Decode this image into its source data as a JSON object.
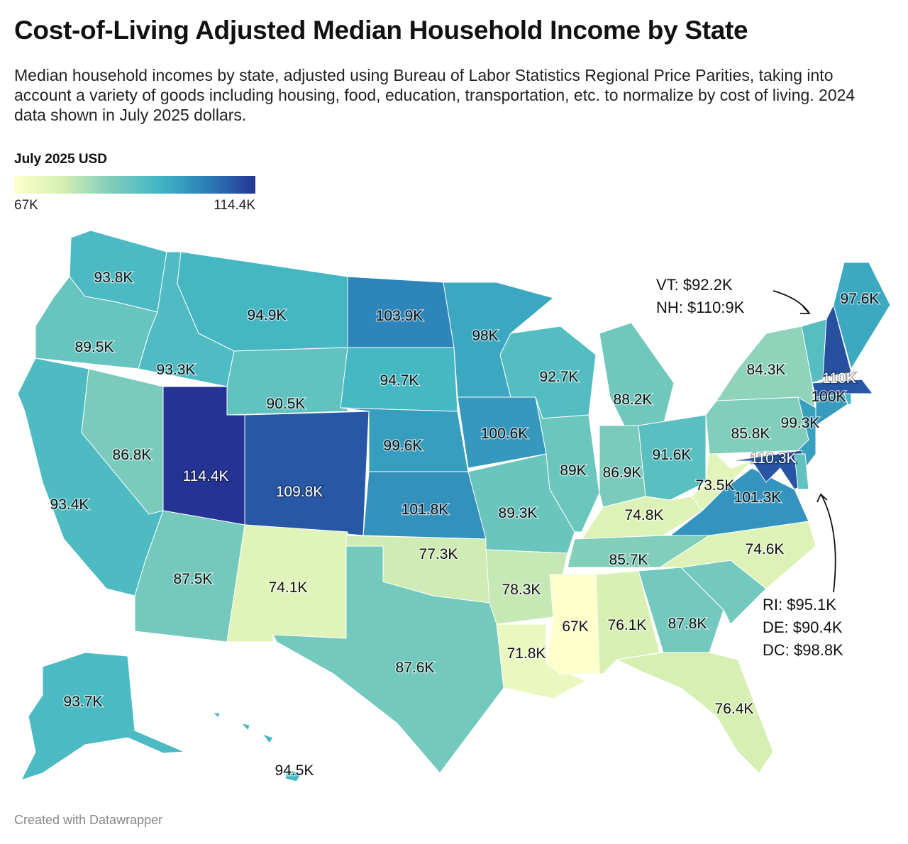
{
  "title": "Cost-of-Living Adjusted Median Household Income by State",
  "subtitle": "Median household incomes by state, adjusted using Bureau of Labor Statistics Regional Price Parities, taking into account a variety of goods including housing, food, education, transportation, etc. to normalize by cost of living. 2024 data shown in July 2025 dollars.",
  "legend": {
    "title": "July 2025 USD",
    "min_label": "67K",
    "max_label": "114.4K",
    "min": 67,
    "max": 114.4,
    "colors": [
      "#ffffcc",
      "#d6efb3",
      "#7fcdbb",
      "#41b6c4",
      "#2c7fb8",
      "#253494"
    ]
  },
  "states": [
    {
      "abbr": "WA",
      "value": 93.8,
      "label": "93.8K"
    },
    {
      "abbr": "OR",
      "value": 89.5,
      "label": "89.5K"
    },
    {
      "abbr": "CA",
      "value": 93.4,
      "label": "93.4K"
    },
    {
      "abbr": "NV",
      "value": 86.8,
      "label": "86.8K"
    },
    {
      "abbr": "ID",
      "value": 93.3,
      "label": "93.3K"
    },
    {
      "abbr": "MT",
      "value": 94.9,
      "label": "94.9K"
    },
    {
      "abbr": "WY",
      "value": 90.5,
      "label": "90.5K"
    },
    {
      "abbr": "UT",
      "value": 114.4,
      "label": "114.4K"
    },
    {
      "abbr": "CO",
      "value": 109.8,
      "label": "109.8K"
    },
    {
      "abbr": "AZ",
      "value": 87.5,
      "label": "87.5K"
    },
    {
      "abbr": "NM",
      "value": 74.1,
      "label": "74.1K"
    },
    {
      "abbr": "ND",
      "value": 103.9,
      "label": "103.9K"
    },
    {
      "abbr": "SD",
      "value": 94.7,
      "label": "94.7K"
    },
    {
      "abbr": "NE",
      "value": 99.6,
      "label": "99.6K"
    },
    {
      "abbr": "KS",
      "value": 101.8,
      "label": "101.8K"
    },
    {
      "abbr": "OK",
      "value": 77.3,
      "label": "77.3K"
    },
    {
      "abbr": "TX",
      "value": 87.6,
      "label": "87.6K"
    },
    {
      "abbr": "MN",
      "value": 98,
      "label": "98K"
    },
    {
      "abbr": "IA",
      "value": 100.6,
      "label": "100.6K"
    },
    {
      "abbr": "MO",
      "value": 89.3,
      "label": "89.3K"
    },
    {
      "abbr": "AR",
      "value": 78.3,
      "label": "78.3K"
    },
    {
      "abbr": "LA",
      "value": 71.8,
      "label": "71.8K"
    },
    {
      "abbr": "WI",
      "value": 92.7,
      "label": "92.7K"
    },
    {
      "abbr": "IL",
      "value": 89,
      "label": "89K"
    },
    {
      "abbr": "MI",
      "value": 88.2,
      "label": "88.2K"
    },
    {
      "abbr": "IN",
      "value": 86.9,
      "label": "86.9K"
    },
    {
      "abbr": "OH",
      "value": 91.6,
      "label": "91.6K"
    },
    {
      "abbr": "KY",
      "value": 74.8,
      "label": "74.8K"
    },
    {
      "abbr": "TN",
      "value": 85.7,
      "label": "85.7K"
    },
    {
      "abbr": "MS",
      "value": 67,
      "label": "67K"
    },
    {
      "abbr": "AL",
      "value": 76.1,
      "label": "76.1K"
    },
    {
      "abbr": "GA",
      "value": 87.8,
      "label": "87.8K"
    },
    {
      "abbr": "FL",
      "value": 76.4,
      "label": "76.4K"
    },
    {
      "abbr": "SC",
      "value": 87.8,
      "label": ""
    },
    {
      "abbr": "NC",
      "value": 74.6,
      "label": "74.6K"
    },
    {
      "abbr": "VA",
      "value": 101.3,
      "label": "101.3K"
    },
    {
      "abbr": "WV",
      "value": 73.5,
      "label": "73.5K"
    },
    {
      "abbr": "PA",
      "value": 85.8,
      "label": "85.8K"
    },
    {
      "abbr": "NY",
      "value": 84.3,
      "label": "84.3K"
    },
    {
      "abbr": "NJ",
      "value": 99.3,
      "label": "99.3K"
    },
    {
      "abbr": "MD",
      "value": 110.3,
      "label": "110.3K"
    },
    {
      "abbr": "DE",
      "value": 90.4,
      "label": ""
    },
    {
      "abbr": "CT",
      "value": 100,
      "label": "100K"
    },
    {
      "abbr": "RI",
      "value": 95.1,
      "label": ""
    },
    {
      "abbr": "MA",
      "value": 110,
      "label": "110K"
    },
    {
      "abbr": "VT",
      "value": 92.2,
      "label": ""
    },
    {
      "abbr": "NH",
      "value": 110.9,
      "label": ""
    },
    {
      "abbr": "ME",
      "value": 97.6,
      "label": "97.6K"
    },
    {
      "abbr": "AK",
      "value": 93.7,
      "label": "93.7K"
    },
    {
      "abbr": "HI",
      "value": 94.5,
      "label": "94.5K"
    }
  ],
  "annotations": {
    "northeast": [
      "VT: $92.2K",
      "NH: $110:9K"
    ],
    "midatlantic": [
      "RI: $95.1K",
      "DE: $90.4K",
      "DC: $98.8K"
    ]
  },
  "footer": "Created with Datawrapper"
}
